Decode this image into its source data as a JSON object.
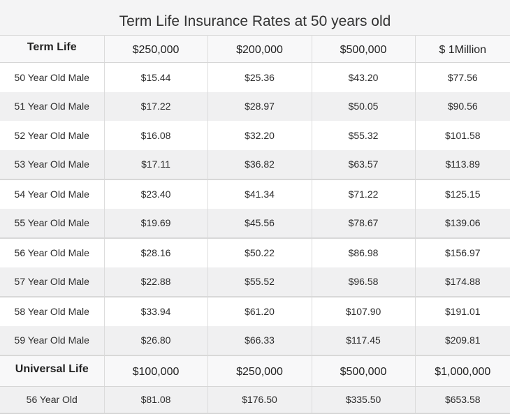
{
  "title": "Term Life Insurance Rates at 50 years old",
  "term": {
    "header": [
      "Term Life",
      "$250,000",
      "$200,000",
      "$500,000",
      "$ 1Million"
    ],
    "rows": [
      [
        "50 Year Old Male",
        "$15.44",
        "$25.36",
        "$43.20",
        "$77.56"
      ],
      [
        "51 Year Old Male",
        "$17.22",
        "$28.97",
        "$50.05",
        "$90.56"
      ],
      [
        "52 Year Old Male",
        "$16.08",
        "$32.20",
        "$55.32",
        "$101.58"
      ],
      [
        "53 Year Old Male",
        "$17.11",
        "$36.82",
        "$63.57",
        "$113.89"
      ],
      [
        "54 Year Old Male",
        "$23.40",
        "$41.34",
        "$71.22",
        "$125.15"
      ],
      [
        "55 Year Old Male",
        "$19.69",
        "$45.56",
        "$78.67",
        "$139.06"
      ],
      [
        "56 Year Old Male",
        "$28.16",
        "$50.22",
        "$86.98",
        "$156.97"
      ],
      [
        "57 Year Old Male",
        "$22.88",
        "$55.52",
        "$96.58",
        "$174.88"
      ],
      [
        "58 Year Old Male",
        "$33.94",
        "$61.20",
        "$107.90",
        "$191.01"
      ],
      [
        "59 Year Old Male",
        "$26.80",
        "$66.33",
        "$117.45",
        "$209.81"
      ]
    ]
  },
  "universal": {
    "header": [
      "Universal Life",
      "$100,000",
      "$250,000",
      "$500,000",
      "$1,000,000"
    ],
    "rows": [
      [
        "56 Year Old",
        "$81.08",
        "$176.50",
        "$335.50",
        "$653.58"
      ]
    ]
  }
}
